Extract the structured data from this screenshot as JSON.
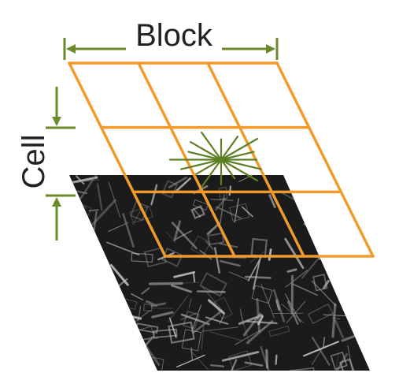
{
  "labels": {
    "block": "Block",
    "cell": "Cell"
  },
  "diagram": {
    "grid": {
      "rows": 3,
      "cols": 3,
      "highlighted_cell": {
        "row": 1,
        "col": 1
      }
    },
    "gradient_rays": 16,
    "colors": {
      "grid": "#f39a2b",
      "arrows": "#6b8a2a",
      "histogram": "#5d7f25",
      "image_dark": "#1b1b1b",
      "image_light": "#bdbdbd"
    },
    "icons": {
      "block_dimension": "double-arrow",
      "cell_dimension": "double-arrow"
    }
  }
}
